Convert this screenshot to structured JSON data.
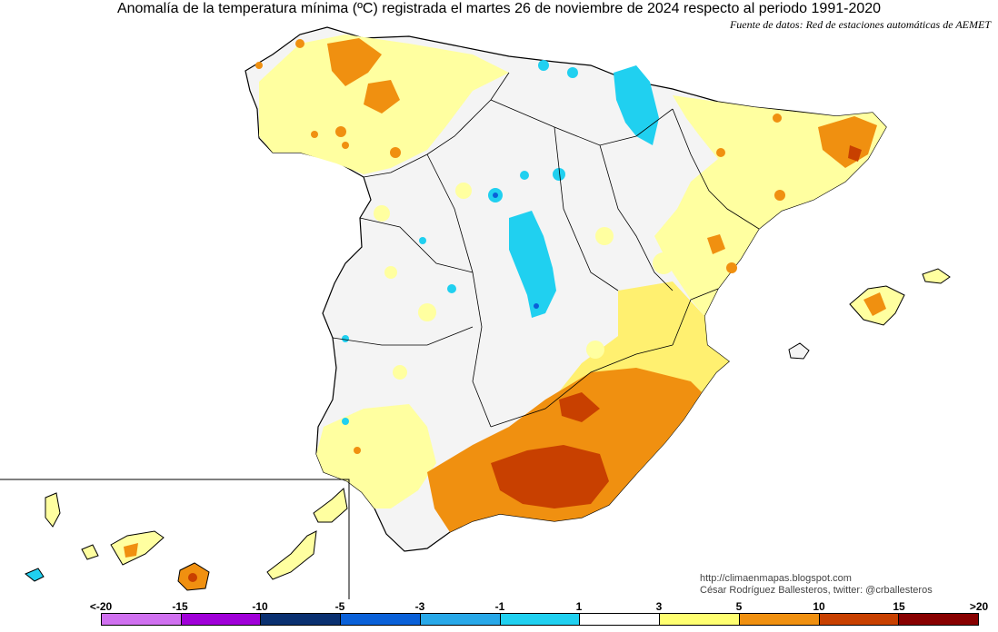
{
  "header": {
    "title": "Anomalía de la temperatura mínima (ºC) registrada el martes 26 de noviembre de 2024 respecto al periodo 1991-2020",
    "source": "Fuente de datos: Red de estaciones automáticas de AEMET"
  },
  "credits": {
    "blog": "http://climaenmapas.blogspot.com",
    "author": "César Rodríguez Ballesteros, twitter: @crballesteros"
  },
  "legend": {
    "ticks": [
      "<-20",
      "-15",
      "-10",
      "-5",
      "-3",
      "-1",
      "1",
      "3",
      "5",
      "10",
      "15",
      ">20"
    ],
    "colors": [
      "#d070f0",
      "#a000d8",
      "#0a3070",
      "#0a60d8",
      "#28a8e8",
      "#20d0f0",
      "#ffffff",
      "#ffff70",
      "#f09010",
      "#c84000",
      "#880000",
      "#603000"
    ]
  },
  "map_palette": {
    "neutral": "#f4f4f4",
    "pale_yellow": "#ffffa0",
    "yellow": "#fff070",
    "orange": "#f09010",
    "red_orange": "#c84000",
    "cyan": "#20d0f0",
    "blue": "#0a60d8",
    "border": "#000000"
  }
}
